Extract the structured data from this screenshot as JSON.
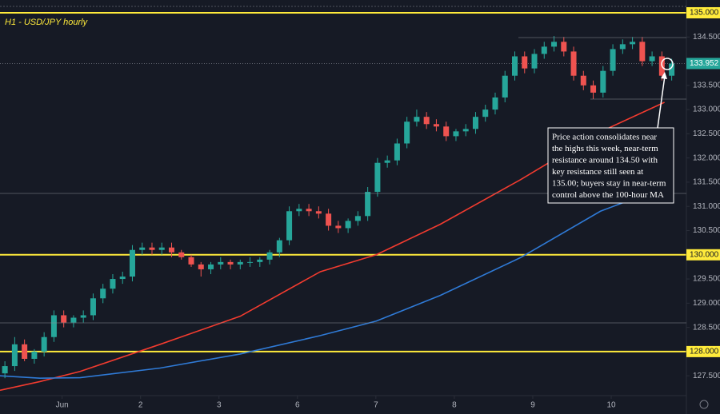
{
  "chart_data": {
    "type": "candlestick",
    "title": "H1 - USD/JPY hourly",
    "x": [
      1.5,
      4.5,
      7.5,
      10.5,
      13.5,
      16.5,
      19.5,
      22.5,
      25.5,
      28.5,
      31.5,
      34.5,
      37.5,
      40.5,
      43.5,
      46.5,
      49.5,
      52.5,
      55.5,
      58.5,
      61.5,
      64.5,
      67.5,
      70.5,
      73.5,
      76.5,
      79.5,
      82.5,
      85.5,
      88.5,
      91.5,
      94.5,
      97.5,
      100.5,
      103.5,
      106.5,
      109.5,
      112.5,
      115.5,
      118.5,
      121.5,
      124.5,
      127.5,
      130.5,
      133.5,
      136.5,
      139.5,
      142.5,
      145.5,
      148.5,
      151.5,
      154.5,
      157.5,
      160.5,
      163.5,
      166.5,
      169.5,
      172.5,
      175.5,
      178.5,
      181.5,
      184.5,
      187.5,
      190.5,
      193.5,
      196.5,
      199.5,
      202.5,
      205.5
    ],
    "open": [
      127.55,
      127.7,
      128.15,
      127.85,
      128.0,
      128.3,
      128.75,
      128.6,
      128.7,
      128.75,
      129.1,
      129.3,
      129.5,
      129.55,
      130.1,
      130.15,
      130.1,
      130.15,
      130.05,
      129.95,
      129.8,
      129.7,
      129.8,
      129.85,
      129.8,
      129.85,
      129.85,
      129.9,
      130.05,
      130.3,
      130.9,
      130.95,
      130.9,
      130.85,
      130.6,
      130.55,
      130.7,
      130.8,
      131.3,
      131.9,
      131.95,
      132.3,
      132.75,
      132.85,
      132.7,
      132.65,
      132.45,
      132.55,
      132.6,
      132.85,
      133.0,
      133.25,
      133.7,
      134.1,
      133.85,
      134.15,
      134.3,
      134.4,
      134.2,
      133.7,
      133.5,
      133.35,
      133.8,
      134.25,
      134.35,
      134.4,
      134.0,
      134.1,
      133.7
    ],
    "high": [
      127.8,
      128.3,
      128.25,
      128.05,
      128.4,
      128.85,
      128.85,
      128.75,
      128.85,
      129.2,
      129.4,
      129.6,
      129.65,
      130.2,
      130.25,
      130.25,
      130.25,
      130.25,
      130.1,
      130.0,
      129.85,
      129.85,
      129.95,
      129.9,
      129.9,
      129.95,
      129.95,
      130.1,
      130.35,
      131.0,
      131.05,
      131.05,
      131.0,
      130.95,
      130.7,
      130.75,
      130.9,
      131.4,
      132.0,
      132.05,
      132.4,
      132.85,
      133.0,
      132.95,
      132.8,
      132.75,
      132.6,
      132.7,
      132.95,
      133.1,
      133.35,
      133.8,
      134.2,
      134.2,
      134.25,
      134.4,
      134.52,
      134.5,
      134.3,
      133.8,
      133.6,
      133.9,
      134.35,
      134.45,
      134.5,
      134.5,
      134.2,
      134.2,
      134.05
    ],
    "low": [
      127.45,
      127.6,
      127.8,
      127.75,
      127.9,
      128.2,
      128.5,
      128.5,
      128.6,
      128.65,
      129.0,
      129.2,
      129.4,
      129.45,
      130.0,
      130.0,
      130.0,
      129.95,
      129.9,
      129.75,
      129.55,
      129.6,
      129.7,
      129.7,
      129.7,
      129.75,
      129.75,
      129.8,
      129.95,
      130.2,
      130.8,
      130.8,
      130.75,
      130.5,
      130.45,
      130.45,
      130.6,
      130.7,
      131.2,
      131.8,
      131.85,
      132.2,
      132.65,
      132.6,
      132.55,
      132.35,
      132.35,
      132.45,
      132.5,
      132.75,
      132.9,
      133.15,
      133.6,
      133.75,
      133.75,
      134.05,
      134.2,
      134.1,
      133.6,
      133.4,
      133.22,
      133.25,
      133.7,
      134.15,
      134.25,
      133.9,
      133.9,
      133.6,
      133.6
    ],
    "close": [
      127.7,
      128.15,
      127.85,
      128.0,
      128.3,
      128.75,
      128.6,
      128.7,
      128.75,
      129.1,
      129.3,
      129.5,
      129.55,
      130.1,
      130.15,
      130.1,
      130.15,
      130.05,
      129.95,
      129.8,
      129.7,
      129.8,
      129.85,
      129.8,
      129.85,
      129.85,
      129.9,
      130.05,
      130.3,
      130.9,
      130.95,
      130.9,
      130.85,
      130.6,
      130.55,
      130.7,
      130.8,
      131.3,
      131.9,
      131.95,
      132.3,
      132.75,
      132.85,
      132.7,
      132.65,
      132.45,
      132.55,
      132.6,
      132.85,
      133.0,
      133.25,
      133.7,
      134.1,
      133.85,
      134.15,
      134.3,
      134.4,
      134.2,
      133.7,
      133.5,
      133.35,
      133.8,
      134.25,
      134.35,
      134.4,
      134.0,
      134.1,
      133.7,
      133.95
    ],
    "up_color": "#26a69a",
    "down_color": "#ef5350",
    "lines": [
      {
        "color": "#f23b2f",
        "x": [
          0,
          12.2,
          24.5,
          49,
          73.5,
          98,
          115.1,
          134.7,
          159.2,
          183.7,
          203.3
        ],
        "values": [
          127.2,
          127.38,
          127.59,
          128.15,
          128.73,
          129.65,
          130.0,
          130.63,
          131.55,
          132.54,
          133.15
        ]
      },
      {
        "color": "#2f7ad6",
        "x": [
          0,
          12.2,
          24.5,
          49,
          73.5,
          98,
          115.1,
          134.7,
          159.2,
          183.7,
          203.3
        ],
        "values": [
          127.5,
          127.45,
          127.46,
          127.66,
          127.95,
          128.33,
          128.63,
          129.16,
          129.94,
          130.9,
          131.4
        ]
      }
    ],
    "levels": [
      {
        "value": 135,
        "label": "135.000"
      },
      {
        "value": 130,
        "label": "130.000"
      },
      {
        "value": 128,
        "label": "128.000"
      }
    ],
    "level_color": "#ffeb3b",
    "last_price": {
      "value": 133.952,
      "label": "133.952"
    },
    "xlim": [
      0,
      210
    ],
    "ylim": [
      127.09,
      135.264
    ],
    "xticks": [
      {
        "value": 19,
        "label": "Jun"
      },
      {
        "value": 43,
        "label": "2"
      },
      {
        "value": 67,
        "label": "3"
      },
      {
        "value": 91,
        "label": "6"
      },
      {
        "value": 115,
        "label": "7"
      },
      {
        "value": 139,
        "label": "8"
      },
      {
        "value": 163,
        "label": "9"
      },
      {
        "value": 187,
        "label": "10"
      }
    ],
    "yticks": [
      {
        "value": 134.5,
        "label": "134.500"
      },
      {
        "value": 133.5,
        "label": "133.500"
      },
      {
        "value": 133,
        "label": "133.000"
      },
      {
        "value": 132.5,
        "label": "132.500"
      },
      {
        "value": 132,
        "label": "132.000"
      },
      {
        "value": 131.5,
        "label": "131.500"
      },
      {
        "value": 131,
        "label": "131.000"
      },
      {
        "value": 130.5,
        "label": "130.500"
      },
      {
        "value": 129.5,
        "label": "129.500"
      },
      {
        "value": 129,
        "label": "129.000"
      },
      {
        "value": 128.5,
        "label": "128.500"
      },
      {
        "value": 127.5,
        "label": "127.500"
      }
    ],
    "annotation": [
      "Price action consolidates near",
      "the highs this week, near-term",
      "resistance around 134.50 with",
      "key resistance still seen at",
      "135.00; buyers stay in near-term",
      "control above the 100-hour MA"
    ]
  }
}
